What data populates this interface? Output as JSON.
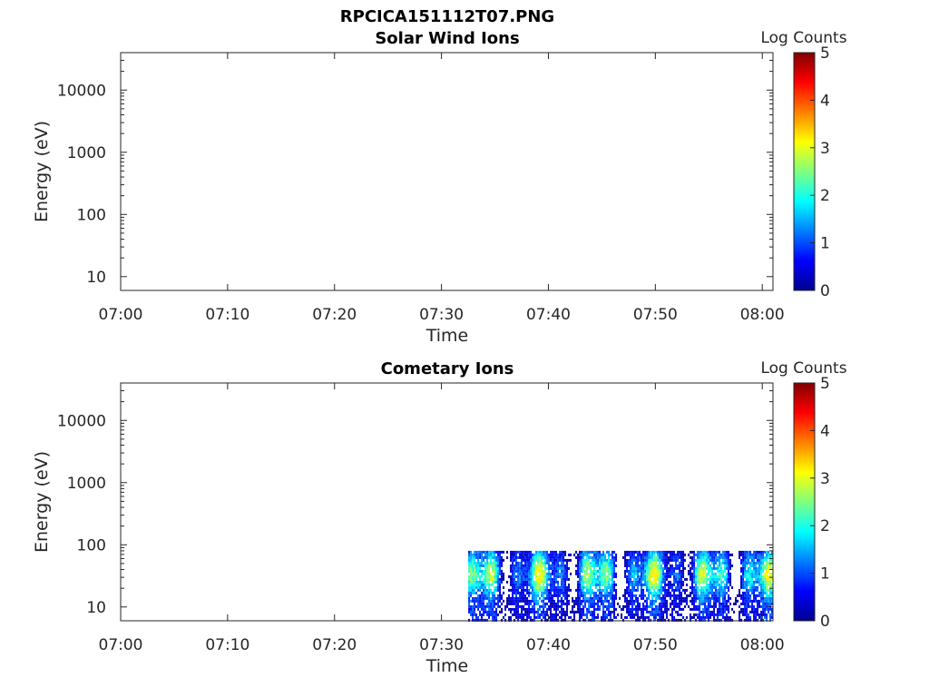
{
  "figure": {
    "title": "RPCICA151112T07.PNG"
  },
  "chart_data": [
    {
      "type": "heatmap",
      "title": "Solar Wind Ions",
      "xlabel": "Time",
      "ylabel": "Energy (eV)",
      "x_ticks": [
        "07:00",
        "07:10",
        "07:20",
        "07:30",
        "07:40",
        "07:50",
        "08:00"
      ],
      "x_range": [
        "07:00",
        "08:01"
      ],
      "y_scale": "log",
      "y_ticks": [
        "10",
        "100",
        "1000",
        "10000"
      ],
      "y_range": [
        6,
        40000
      ],
      "colorbar": {
        "label": "Log Counts",
        "range": [
          0,
          5
        ],
        "ticks": [
          "0",
          "1",
          "2",
          "3",
          "4",
          "5"
        ],
        "colormap": "jet"
      },
      "data": []
    },
    {
      "type": "heatmap",
      "title": "Cometary Ions",
      "xlabel": "Time",
      "ylabel": "Energy (eV)",
      "x_ticks": [
        "07:00",
        "07:10",
        "07:20",
        "07:30",
        "07:40",
        "07:50",
        "08:00"
      ],
      "x_range": [
        "07:00",
        "08:01"
      ],
      "y_scale": "log",
      "y_ticks": [
        "10",
        "100",
        "1000",
        "10000"
      ],
      "y_range": [
        6,
        40000
      ],
      "colorbar": {
        "label": "Log Counts",
        "range": [
          0,
          5
        ],
        "ticks": [
          "0",
          "1",
          "2",
          "3",
          "4",
          "5"
        ],
        "colormap": "jet"
      },
      "data_extent": {
        "time_start": "07:32:30",
        "time_end": "08:01",
        "energy_min": 6,
        "energy_max": 80
      },
      "data_description": "Log counts mostly 0.5-2.5, peaks near 3 around 07:35-07:36 and 07:45-07:47 at 20-60 eV"
    }
  ]
}
